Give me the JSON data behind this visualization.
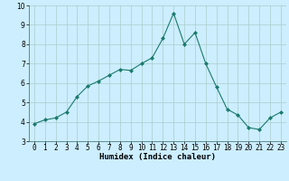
{
  "x": [
    0,
    1,
    2,
    3,
    4,
    5,
    6,
    7,
    8,
    9,
    10,
    11,
    12,
    13,
    14,
    15,
    16,
    17,
    18,
    19,
    20,
    21,
    22,
    23
  ],
  "y": [
    3.9,
    4.1,
    4.2,
    4.5,
    5.3,
    5.85,
    6.1,
    6.4,
    6.7,
    6.65,
    7.0,
    7.3,
    8.3,
    9.6,
    8.0,
    8.6,
    7.0,
    5.8,
    4.65,
    4.35,
    3.7,
    3.6,
    4.2,
    4.5
  ],
  "line_color": "#1a7a6e",
  "marker": "D",
  "marker_size": 2.0,
  "bg_color": "#cceeff",
  "grid_color": "#aacccc",
  "xlabel": "Humidex (Indice chaleur)",
  "ylim": [
    3,
    10
  ],
  "xlim": [
    -0.5,
    23.5
  ],
  "xtick_labels": [
    "0",
    "1",
    "2",
    "3",
    "4",
    "5",
    "6",
    "7",
    "8",
    "9",
    "10",
    "11",
    "12",
    "13",
    "14",
    "15",
    "16",
    "17",
    "18",
    "19",
    "20",
    "21",
    "22",
    "23"
  ],
  "yticks": [
    3,
    4,
    5,
    6,
    7,
    8,
    9,
    10
  ],
  "xlabel_fontsize": 6.5,
  "tick_fontsize": 5.5,
  "line_width": 0.8
}
